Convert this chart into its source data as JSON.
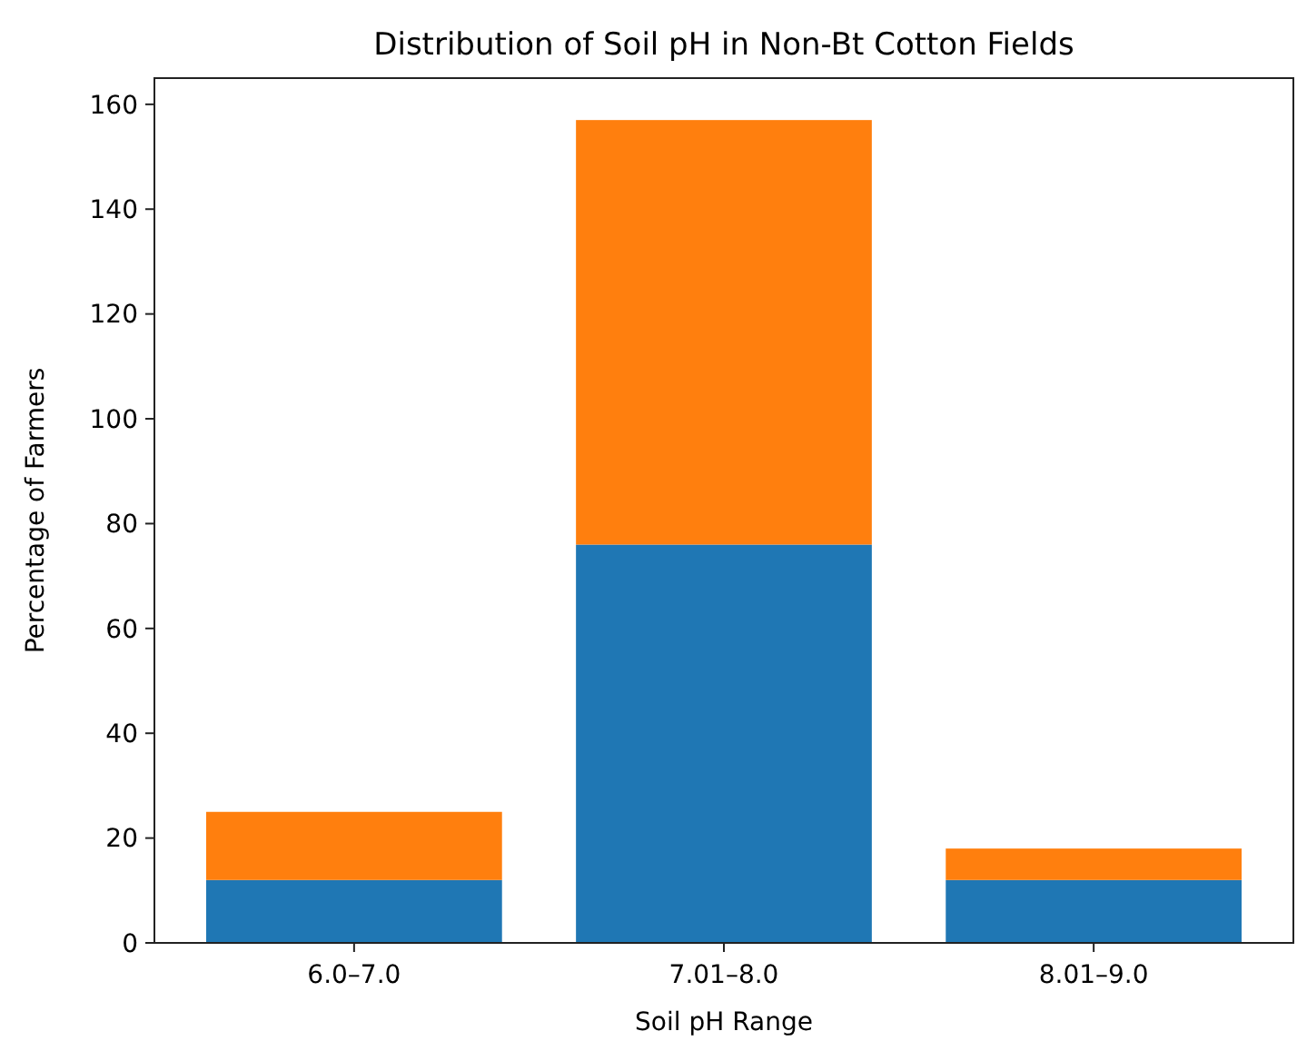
{
  "chart_data": {
    "type": "bar",
    "title": "Distribution of Soil pH in Non-Bt Cotton Fields",
    "xlabel": "Soil pH Range",
    "ylabel": "Percentage of Farmers",
    "categories": [
      "6.0–7.0",
      "7.01–8.0",
      "8.01–9.0"
    ],
    "stacked": true,
    "series": [
      {
        "color": "#1f77b4",
        "values": [
          12,
          76,
          12
        ]
      },
      {
        "color": "#ff7f0e",
        "values": [
          13,
          81,
          6
        ]
      }
    ],
    "ylim": [
      0,
      165
    ],
    "yticks": [
      0,
      20,
      40,
      60,
      80,
      100,
      120,
      140,
      160
    ],
    "grid": false
  }
}
